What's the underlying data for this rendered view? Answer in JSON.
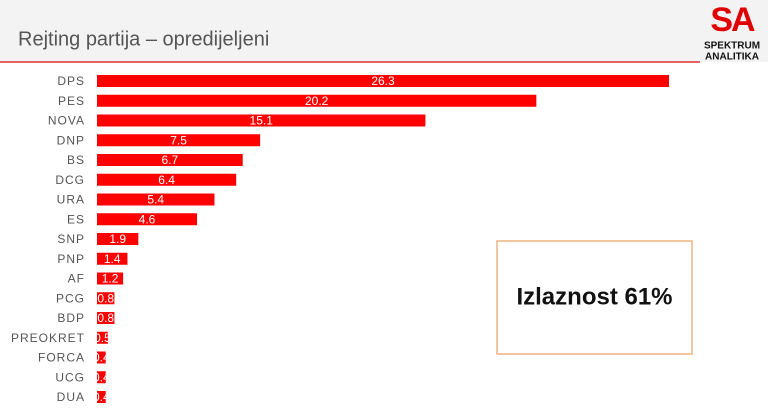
{
  "chart_data": {
    "type": "bar",
    "orientation": "horizontal",
    "title": "Rejting partija – opredijeljeni",
    "categories": [
      "DPS",
      "PES",
      "NOVA",
      "DNP",
      "BS",
      "DCG",
      "URA",
      "ES",
      "SNP",
      "PNP",
      "AF",
      "PCG",
      "BDP",
      "PREOKRET",
      "FORCA",
      "UCG",
      "DUA"
    ],
    "values": [
      26.3,
      20.2,
      15.1,
      7.5,
      6.7,
      6.4,
      5.4,
      4.6,
      1.9,
      1.4,
      1.2,
      0.8,
      0.8,
      0.5,
      0.4,
      0.4,
      0.4
    ],
    "color": "#ff0000",
    "annotations": [
      "Izlaznost 61%"
    ]
  },
  "logo": {
    "mark": "SA",
    "lines": [
      "SPEKTRUM",
      "ANALITIKA"
    ]
  }
}
